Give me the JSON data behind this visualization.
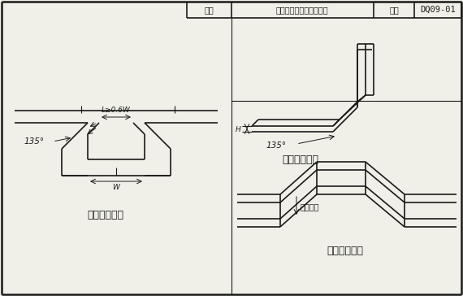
{
  "title": "电缆桥架变向处连接做法",
  "fig_name_label": "图名",
  "fig_no_label": "图号",
  "fig_no": "DQ09-01",
  "bg_color": "#f0f0e8",
  "line_color": "#1a1a1a",
  "label1": "槽架水平三通",
  "label2": "槽架垂直弯头",
  "label3": "槽架水平齿弯",
  "dim_L": "L≥0.6W",
  "dim_W": "W",
  "dim_H": "H",
  "angle1": "135°",
  "angle2": "135°",
  "angle3": "翻弯角度"
}
